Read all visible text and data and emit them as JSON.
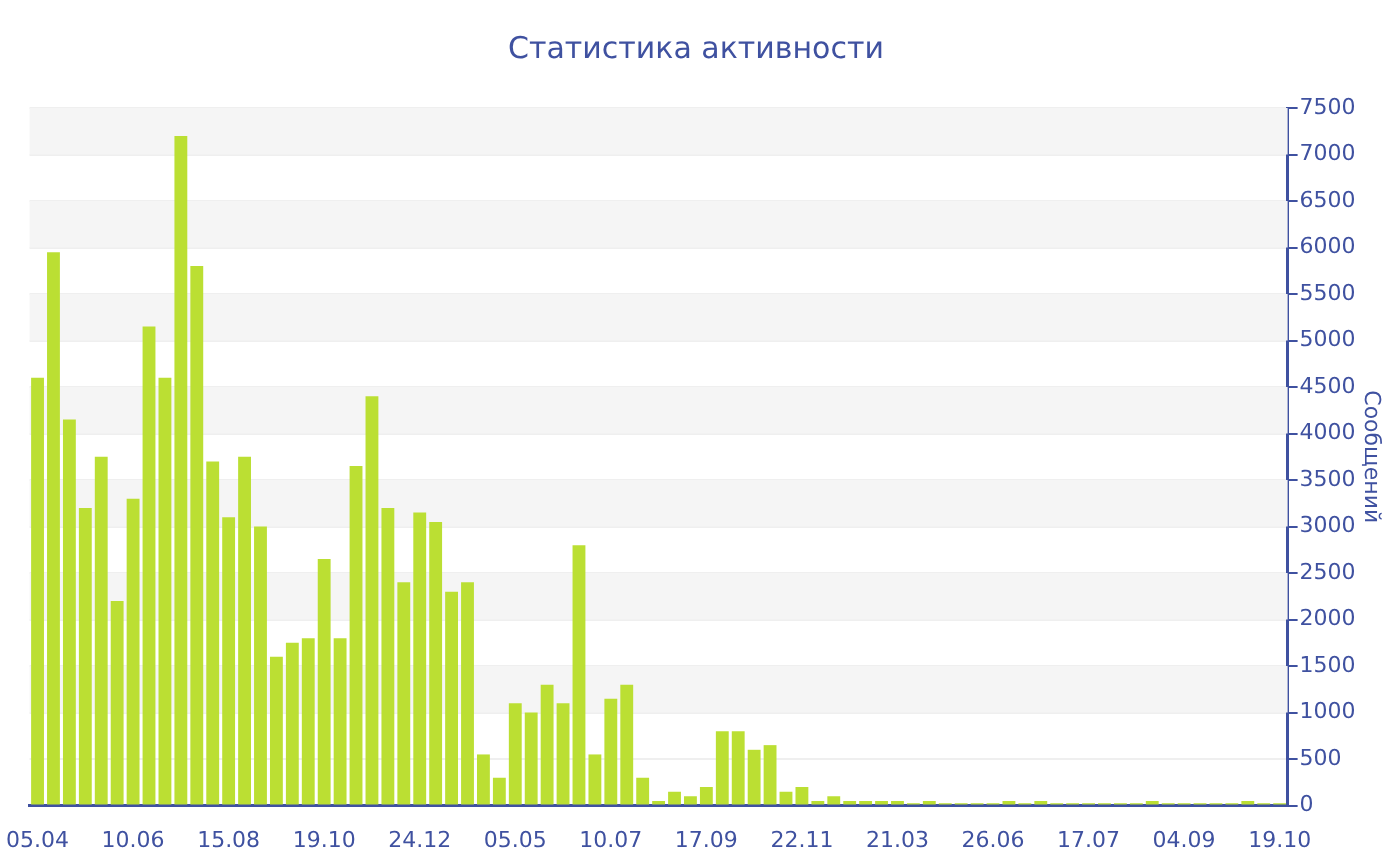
{
  "chart_data": {
    "type": "bar",
    "title": "Статистика активности",
    "ylabel": "Сообщений",
    "categories": [
      "05.04",
      null,
      null,
      null,
      null,
      null,
      "10.06",
      null,
      null,
      null,
      null,
      null,
      "15.08",
      null,
      null,
      null,
      null,
      null,
      "19.10",
      null,
      null,
      null,
      null,
      null,
      "24.12",
      null,
      null,
      null,
      null,
      null,
      "05.05",
      null,
      null,
      null,
      null,
      null,
      "10.07",
      null,
      null,
      null,
      null,
      null,
      "17.09",
      null,
      null,
      null,
      null,
      null,
      "22.11",
      null,
      null,
      null,
      null,
      null,
      "21.03",
      null,
      null,
      null,
      null,
      null,
      "26.06",
      null,
      null,
      null,
      null,
      null,
      "17.07",
      null,
      null,
      null,
      null,
      null,
      "04.09",
      null,
      null,
      null,
      null,
      null,
      "19.10"
    ],
    "values": [
      4600,
      5950,
      4150,
      3200,
      3750,
      2200,
      3300,
      5150,
      4600,
      7200,
      5800,
      3700,
      3100,
      3750,
      3000,
      1600,
      1750,
      1800,
      2650,
      1800,
      3650,
      4400,
      3200,
      2400,
      3150,
      3050,
      2300,
      2400,
      550,
      300,
      1100,
      1000,
      1300,
      1100,
      2800,
      550,
      1150,
      1300,
      300,
      50,
      150,
      100,
      200,
      800,
      800,
      600,
      650,
      150,
      200,
      50,
      100,
      50,
      50,
      50,
      50,
      25,
      50,
      25,
      25,
      25,
      25,
      50,
      25,
      50,
      25,
      25,
      25,
      25,
      25,
      25,
      50,
      25,
      25,
      25,
      25,
      25,
      50,
      25,
      25
    ],
    "color": "#bbdf33",
    "ylim": [
      0,
      7500
    ],
    "yticks": [
      0,
      500,
      1000,
      1500,
      2000,
      2500,
      3000,
      3500,
      4000,
      4500,
      5000,
      5500,
      6000,
      6500,
      7000,
      7500
    ],
    "grid": "y"
  }
}
